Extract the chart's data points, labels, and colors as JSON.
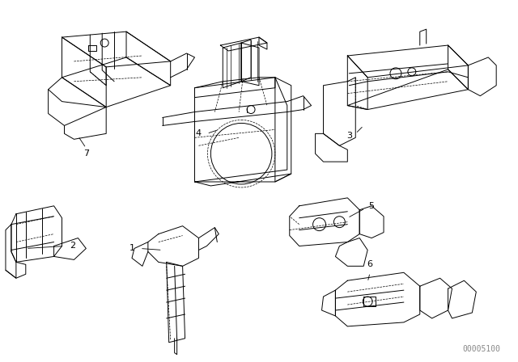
{
  "background_color": "#ffffff",
  "part_color": "#000000",
  "watermark_text": "00005100",
  "watermark_color": "#888888",
  "watermark_fontsize": 7,
  "fig_width": 6.4,
  "fig_height": 4.48,
  "dpi": 100
}
